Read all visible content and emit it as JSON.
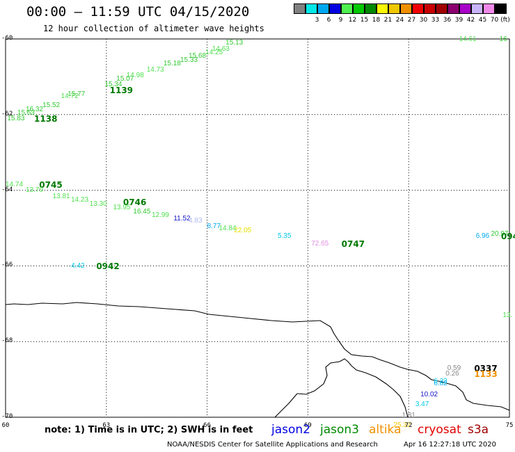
{
  "header": {
    "title": "00:00 – 11:59 UTC 04/15/2020",
    "subtitle": "12 hour collection of altimeter wave heights"
  },
  "legend": {
    "unit": "(ft)",
    "bins": [
      {
        "label": "",
        "color": "#808080"
      },
      {
        "label": "3",
        "color": "#00e8e8"
      },
      {
        "label": "6",
        "color": "#00a8f0"
      },
      {
        "label": "9",
        "color": "#0000e0"
      },
      {
        "label": "12",
        "color": "#50f050"
      },
      {
        "label": "15",
        "color": "#00c800"
      },
      {
        "label": "18",
        "color": "#008800"
      },
      {
        "label": "21",
        "color": "#f8f800"
      },
      {
        "label": "24",
        "color": "#f0c800"
      },
      {
        "label": "27",
        "color": "#f09000"
      },
      {
        "label": "30",
        "color": "#f00000"
      },
      {
        "label": "33",
        "color": "#c80000"
      },
      {
        "label": "36",
        "color": "#a00000"
      },
      {
        "label": "39",
        "color": "#8c0070"
      },
      {
        "label": "42",
        "color": "#a800c8"
      },
      {
        "label": "45",
        "color": "#c8b4f8"
      },
      {
        "label": "70",
        "color": "#f088e8"
      },
      {
        "label": "",
        "color": "#000000"
      }
    ]
  },
  "axes": {
    "lat_labels": [
      "-60",
      "-62",
      "-64",
      "-66",
      "-68",
      "-70"
    ],
    "lon_labels": [
      "60",
      "63",
      "66",
      "69",
      "72",
      "75"
    ]
  },
  "observations": [
    {
      "text": "14.61",
      "color": "#50e050",
      "lon": 73.5,
      "lat": -60.0,
      "kind": "swh"
    },
    {
      "text": "15.13",
      "color": "#30c830",
      "lon": 66.55,
      "lat": -60.1,
      "kind": "swh"
    },
    {
      "text": "14.63",
      "color": "#50e050",
      "lon": 66.15,
      "lat": -60.25,
      "kind": "swh"
    },
    {
      "text": "14.25",
      "color": "#50e050",
      "lon": 65.95,
      "lat": -60.35,
      "kind": "swh"
    },
    {
      "text": "15.68",
      "color": "#30c830",
      "lon": 65.45,
      "lat": -60.45,
      "kind": "swh"
    },
    {
      "text": "15.33",
      "color": "#30c830",
      "lon": 65.2,
      "lat": -60.55,
      "kind": "swh"
    },
    {
      "text": "15.18",
      "color": "#30c830",
      "lon": 64.7,
      "lat": -60.65,
      "kind": "swh"
    },
    {
      "text": "14.73",
      "color": "#50e050",
      "lon": 64.2,
      "lat": -60.8,
      "kind": "swh"
    },
    {
      "text": "14.98",
      "color": "#50e050",
      "lon": 63.6,
      "lat": -60.95,
      "kind": "swh"
    },
    {
      "text": "15.07",
      "color": "#30c830",
      "lon": 63.3,
      "lat": -61.05,
      "kind": "swh"
    },
    {
      "text": "15.34",
      "color": "#30c830",
      "lon": 62.95,
      "lat": -61.2,
      "kind": "swh"
    },
    {
      "text": "1139",
      "color": "#007800",
      "lon": 63.1,
      "lat": -61.35,
      "kind": "time"
    },
    {
      "text": "15.77",
      "color": "#30c830",
      "lon": 61.85,
      "lat": -61.45,
      "kind": "swh"
    },
    {
      "text": "14.72",
      "color": "#50e050",
      "lon": 61.65,
      "lat": -61.5,
      "kind": "swh"
    },
    {
      "text": "15.52",
      "color": "#30c830",
      "lon": 61.1,
      "lat": -61.75,
      "kind": "swh"
    },
    {
      "text": "16.32",
      "color": "#30c830",
      "lon": 60.6,
      "lat": -61.85,
      "kind": "swh"
    },
    {
      "text": "15.63",
      "color": "#30c830",
      "lon": 60.35,
      "lat": -61.95,
      "kind": "swh"
    },
    {
      "text": "15.83",
      "color": "#30c830",
      "lon": 60.05,
      "lat": -62.1,
      "kind": "swh"
    },
    {
      "text": "1138",
      "color": "#007800",
      "lon": 60.85,
      "lat": -62.1,
      "kind": "time"
    },
    {
      "text": "16",
      "color": "#30c830",
      "lon": 74.7,
      "lat": -60.0,
      "kind": "swh"
    },
    {
      "text": "14.74",
      "color": "#50e050",
      "lon": 60.0,
      "lat": -63.85,
      "kind": "swh"
    },
    {
      "text": "0745",
      "color": "#007800",
      "lon": 61.0,
      "lat": -63.85,
      "kind": "time"
    },
    {
      "text": "13.79",
      "color": "#50e050",
      "lon": 60.6,
      "lat": -63.98,
      "kind": "swh"
    },
    {
      "text": "13.81",
      "color": "#50e050",
      "lon": 61.4,
      "lat": -64.15,
      "kind": "swh"
    },
    {
      "text": "14.23",
      "color": "#50e050",
      "lon": 61.95,
      "lat": -64.25,
      "kind": "swh"
    },
    {
      "text": "13.30",
      "color": "#50e050",
      "lon": 62.5,
      "lat": -64.35,
      "kind": "swh"
    },
    {
      "text": "0746",
      "color": "#007800",
      "lon": 63.5,
      "lat": -64.3,
      "kind": "time"
    },
    {
      "text": "13.95",
      "color": "#50e050",
      "lon": 63.2,
      "lat": -64.45,
      "kind": "swh"
    },
    {
      "text": "16.45",
      "color": "#30c830",
      "lon": 63.8,
      "lat": -64.55,
      "kind": "swh"
    },
    {
      "text": "12.99",
      "color": "#50e050",
      "lon": 64.35,
      "lat": -64.65,
      "kind": "swh"
    },
    {
      "text": "11.52",
      "color": "#1010c8",
      "lon": 65.0,
      "lat": -64.75,
      "kind": "swh"
    },
    {
      "text": "4.83",
      "color": "#b0b8f0",
      "lon": 65.45,
      "lat": -64.8,
      "kind": "swh"
    },
    {
      "text": "8.77",
      "color": "#00a8f0",
      "lon": 66.0,
      "lat": -64.95,
      "kind": "swh"
    },
    {
      "text": "14.84",
      "color": "#50e050",
      "lon": 66.35,
      "lat": -65.0,
      "kind": "swh"
    },
    {
      "text": "22.05",
      "color": "#e8e000",
      "lon": 66.8,
      "lat": -65.05,
      "kind": "swh"
    },
    {
      "text": "5.35",
      "color": "#00c8e8",
      "lon": 68.1,
      "lat": -65.2,
      "kind": "swh"
    },
    {
      "text": "72.65",
      "color": "#e090e0",
      "lon": 69.1,
      "lat": -65.4,
      "kind": "swh"
    },
    {
      "text": "0747",
      "color": "#007800",
      "lon": 70.0,
      "lat": -65.4,
      "kind": "time"
    },
    {
      "text": "6.96",
      "color": "#00a8f0",
      "lon": 74.0,
      "lat": -65.2,
      "kind": "swh"
    },
    {
      "text": "20.97",
      "color": "#30c830",
      "lon": 74.45,
      "lat": -65.15,
      "kind": "swh"
    },
    {
      "text": "094",
      "color": "#007800",
      "lon": 74.75,
      "lat": -65.2,
      "kind": "time"
    },
    {
      "text": "4.42",
      "color": "#00c8e8",
      "lon": 61.95,
      "lat": -66.0,
      "kind": "swh"
    },
    {
      "text": "0942",
      "color": "#007800",
      "lon": 62.7,
      "lat": -66.0,
      "kind": "time"
    },
    {
      "text": "13.",
      "color": "#50e050",
      "lon": 74.8,
      "lat": -67.3,
      "kind": "swh"
    },
    {
      "text": "0.59",
      "color": "#888888",
      "lon": 73.15,
      "lat": -68.7,
      "kind": "swh"
    },
    {
      "text": "0337",
      "color": "#000000",
      "lon": 73.95,
      "lat": -68.7,
      "kind": "time"
    },
    {
      "text": "0.26",
      "color": "#888888",
      "lon": 73.1,
      "lat": -68.85,
      "kind": "swh"
    },
    {
      "text": "1133",
      "color": "#f09000",
      "lon": 73.95,
      "lat": -68.85,
      "kind": "time"
    },
    {
      "text": "6.82",
      "color": "#00a8f0",
      "lon": 72.75,
      "lat": -69.1,
      "kind": "swh"
    },
    {
      "text": "6.22",
      "color": "#00c8e8",
      "lon": 72.75,
      "lat": -69.05,
      "kind": "swh"
    },
    {
      "text": "10.02",
      "color": "#1010c8",
      "lon": 72.35,
      "lat": -69.4,
      "kind": "swh"
    },
    {
      "text": "3.47",
      "color": "#00c8e8",
      "lon": 72.2,
      "lat": -69.65,
      "kind": "swh"
    },
    {
      "text": "1.81",
      "color": "#888888",
      "lon": 71.8,
      "lat": -69.95,
      "kind": "swh"
    },
    {
      "text": "25.32",
      "color": "#f0c800",
      "lon": 71.55,
      "lat": -70.2,
      "kind": "swh"
    }
  ],
  "footer": {
    "note": "note: 1) Time is in UTC; 2) SWH is in feet",
    "satellites": [
      {
        "name": "jason2",
        "color": "#0000e0"
      },
      {
        "name": "jason3",
        "color": "#008800"
      },
      {
        "name": "altika",
        "color": "#f09000"
      },
      {
        "name": "cryosat",
        "color": "#e00000"
      },
      {
        "name": "s3a",
        "color": "#a00000"
      }
    ],
    "credit": "NOAA/NESDIS Center for Satellite Applications and Research",
    "stamp": "Apr 16 12:27:18 UTC 2020"
  }
}
